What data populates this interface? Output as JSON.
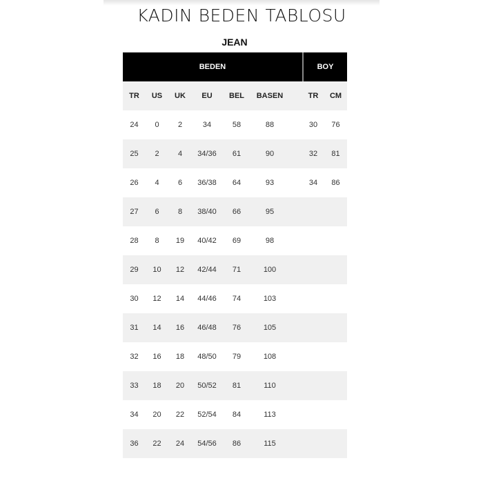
{
  "title": "KADIN BEDEN TABLOSU",
  "subtitle": "JEAN",
  "group_headers": {
    "beden": "BEDEN",
    "boy": "BOY"
  },
  "columns": [
    "TR",
    "US",
    "UK",
    "EU",
    "BEL",
    "BASEN"
  ],
  "boy_columns": [
    "TR",
    "CM"
  ],
  "rows": [
    [
      "24",
      "0",
      "2",
      "34",
      "58",
      "88",
      "30",
      "76"
    ],
    [
      "25",
      "2",
      "4",
      "34/36",
      "61",
      "90",
      "32",
      "81"
    ],
    [
      "26",
      "4",
      "6",
      "36/38",
      "64",
      "93",
      "34",
      "86"
    ],
    [
      "27",
      "6",
      "8",
      "38/40",
      "66",
      "95",
      "",
      ""
    ],
    [
      "28",
      "8",
      "19",
      "40/42",
      "69",
      "98",
      "",
      ""
    ],
    [
      "29",
      "10",
      "12",
      "42/44",
      "71",
      "100",
      "",
      ""
    ],
    [
      "30",
      "12",
      "14",
      "44/46",
      "74",
      "103",
      "",
      ""
    ],
    [
      "31",
      "14",
      "16",
      "46/48",
      "76",
      "105",
      "",
      ""
    ],
    [
      "32",
      "16",
      "18",
      "48/50",
      "79",
      "108",
      "",
      ""
    ],
    [
      "33",
      "18",
      "20",
      "50/52",
      "81",
      "110",
      "",
      ""
    ],
    [
      "34",
      "20",
      "22",
      "52/54",
      "84",
      "113",
      "",
      ""
    ],
    [
      "36",
      "22",
      "24",
      "54/56",
      "86",
      "115",
      "",
      ""
    ]
  ],
  "colors": {
    "header_bg": "#000000",
    "stripe": "#f0f0f0"
  }
}
